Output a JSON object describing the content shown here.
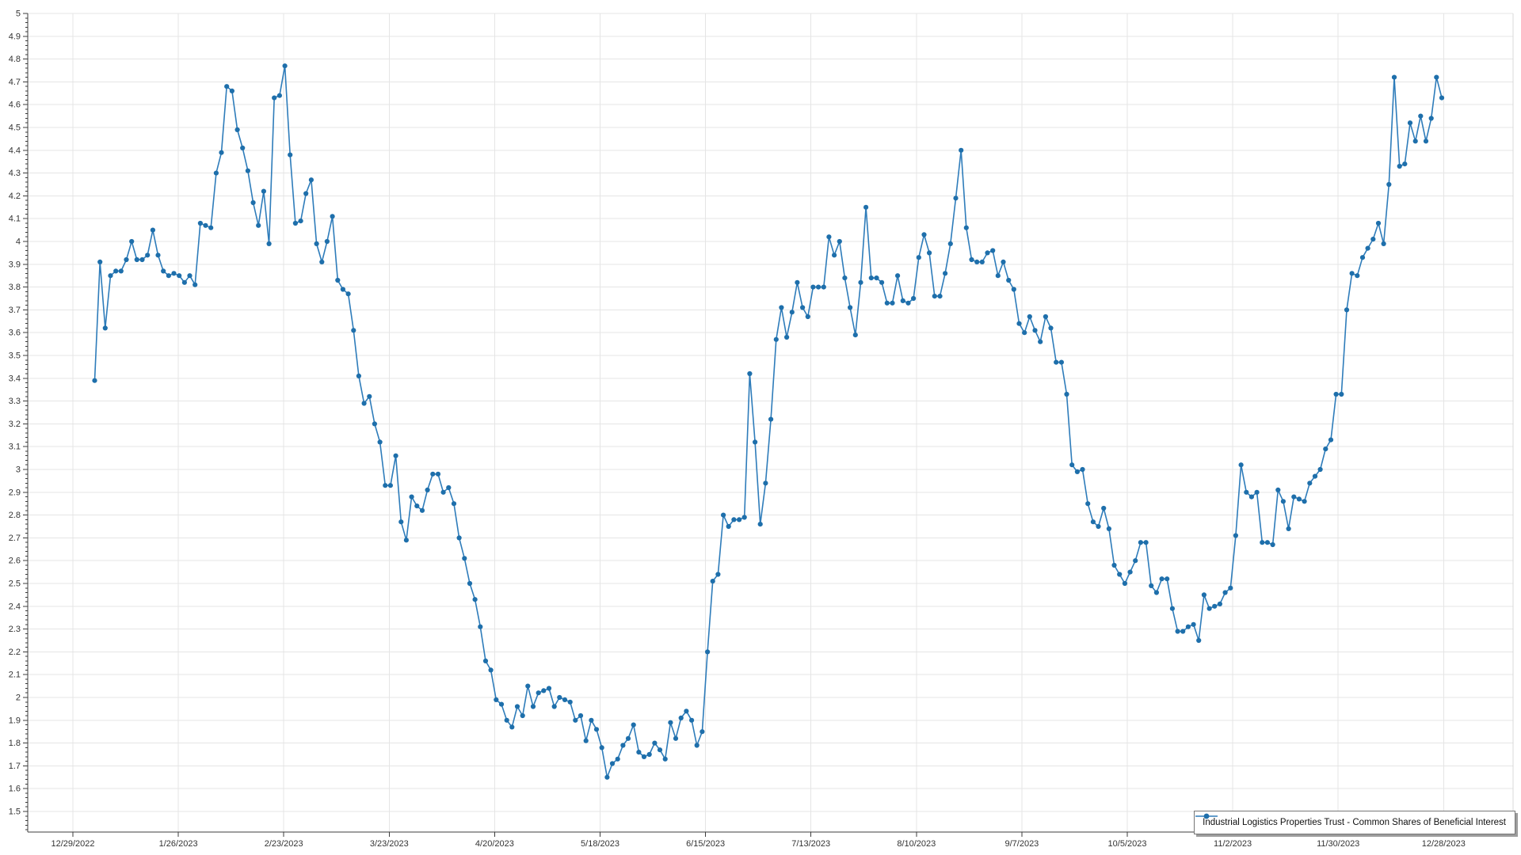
{
  "chart_data": {
    "type": "line",
    "title": "",
    "legend_position": "bottom-right",
    "grid": true,
    "series": [
      {
        "name": "Industrial Logistics Properties Trust - Common Shares of Beneficial Interest",
        "values": [
          3.39,
          3.91,
          3.62,
          3.85,
          3.87,
          3.87,
          3.92,
          4.0,
          3.92,
          3.92,
          3.94,
          4.05,
          3.94,
          3.87,
          3.85,
          3.86,
          3.85,
          3.82,
          3.85,
          3.81,
          4.08,
          4.07,
          4.06,
          4.3,
          4.39,
          4.68,
          4.66,
          4.49,
          4.41,
          4.31,
          4.17,
          4.07,
          4.22,
          3.99,
          4.63,
          4.64,
          4.77,
          4.38,
          4.08,
          4.09,
          4.21,
          4.27,
          3.99,
          3.91,
          4.0,
          4.11,
          3.83,
          3.79,
          3.77,
          3.61,
          3.41,
          3.29,
          3.32,
          3.2,
          3.12,
          2.93,
          2.93,
          3.06,
          2.77,
          2.69,
          2.88,
          2.84,
          2.82,
          2.91,
          2.98,
          2.98,
          2.9,
          2.92,
          2.85,
          2.7,
          2.61,
          2.5,
          2.43,
          2.31,
          2.16,
          2.12,
          1.99,
          1.97,
          1.9,
          1.87,
          1.96,
          1.92,
          2.05,
          1.96,
          2.02,
          2.03,
          2.04,
          1.96,
          2.0,
          1.99,
          1.98,
          1.9,
          1.92,
          1.81,
          1.9,
          1.86,
          1.78,
          1.65,
          1.71,
          1.73,
          1.79,
          1.82,
          1.88,
          1.76,
          1.74,
          1.75,
          1.8,
          1.77,
          1.73,
          1.89,
          1.82,
          1.91,
          1.94,
          1.9,
          1.79,
          1.85,
          2.2,
          2.51,
          2.54,
          2.8,
          2.75,
          2.78,
          2.78,
          2.79,
          3.42,
          3.12,
          2.76,
          2.94,
          3.22,
          3.57,
          3.71,
          3.58,
          3.69,
          3.82,
          3.71,
          3.67,
          3.8,
          3.8,
          3.8,
          4.02,
          3.94,
          4.0,
          3.84,
          3.71,
          3.59,
          3.82,
          4.15,
          3.84,
          3.84,
          3.82,
          3.73,
          3.73,
          3.85,
          3.74,
          3.73,
          3.75,
          3.93,
          4.03,
          3.95,
          3.76,
          3.76,
          3.86,
          3.99,
          4.19,
          4.4,
          4.06,
          3.92,
          3.91,
          3.91,
          3.95,
          3.96,
          3.85,
          3.91,
          3.83,
          3.79,
          3.64,
          3.6,
          3.67,
          3.61,
          3.56,
          3.67,
          3.62,
          3.47,
          3.47,
          3.33,
          3.02,
          2.99,
          3.0,
          2.85,
          2.77,
          2.75,
          2.83,
          2.74,
          2.58,
          2.54,
          2.5,
          2.55,
          2.6,
          2.68,
          2.68,
          2.49,
          2.46,
          2.52,
          2.52,
          2.39,
          2.29,
          2.29,
          2.31,
          2.32,
          2.25,
          2.45,
          2.39,
          2.4,
          2.41,
          2.46,
          2.48,
          2.71,
          3.02,
          2.9,
          2.88,
          2.9,
          2.68,
          2.68,
          2.67,
          2.91,
          2.86,
          2.74,
          2.88,
          2.87,
          2.86,
          2.94,
          2.97,
          3.0,
          3.09,
          3.13,
          3.33,
          3.33,
          3.7,
          3.86,
          3.85,
          3.93,
          3.97,
          4.01,
          4.08,
          3.99,
          4.25,
          4.72,
          4.33,
          4.34,
          4.52,
          4.44,
          4.55,
          4.44,
          4.54,
          4.72,
          4.63
        ]
      }
    ],
    "x_tick_labels": [
      "12/29/2022",
      "1/26/2023",
      "2/23/2023",
      "3/23/2023",
      "4/20/2023",
      "5/18/2023",
      "6/15/2023",
      "7/13/2023",
      "8/10/2023",
      "9/7/2023",
      "10/5/2023",
      "11/2/2023",
      "11/30/2023",
      "12/28/2023"
    ],
    "y_axis": {
      "min": 1.41,
      "max": 5,
      "tick_step": 0.1,
      "minor_tick_step": 0.02,
      "tick_labels": [
        "1.5",
        "1.6",
        "1.7",
        "1.8",
        "1.9",
        "2",
        "2.1",
        "2.2",
        "2.3",
        "2.4",
        "2.5",
        "2.6",
        "2.7",
        "2.8",
        "2.9",
        "3",
        "3.1",
        "3.2",
        "3.3",
        "3.4",
        "3.5",
        "3.6",
        "3.7",
        "3.8",
        "3.9",
        "4",
        "4.1",
        "4.2",
        "4.3",
        "4.4",
        "4.5",
        "4.6",
        "4.7",
        "4.8",
        "4.9",
        "5"
      ]
    },
    "colors": {
      "line": "#2e7cba",
      "marker": "#1e6fab",
      "grid": "#e5e5e5",
      "plot_border": "#d9d9d9",
      "axis": "#3c3c3c",
      "tick_label": "#333333",
      "legend_border": "#767676",
      "legend_shadow": "#9d9d9d",
      "background": "#ffffff"
    }
  }
}
